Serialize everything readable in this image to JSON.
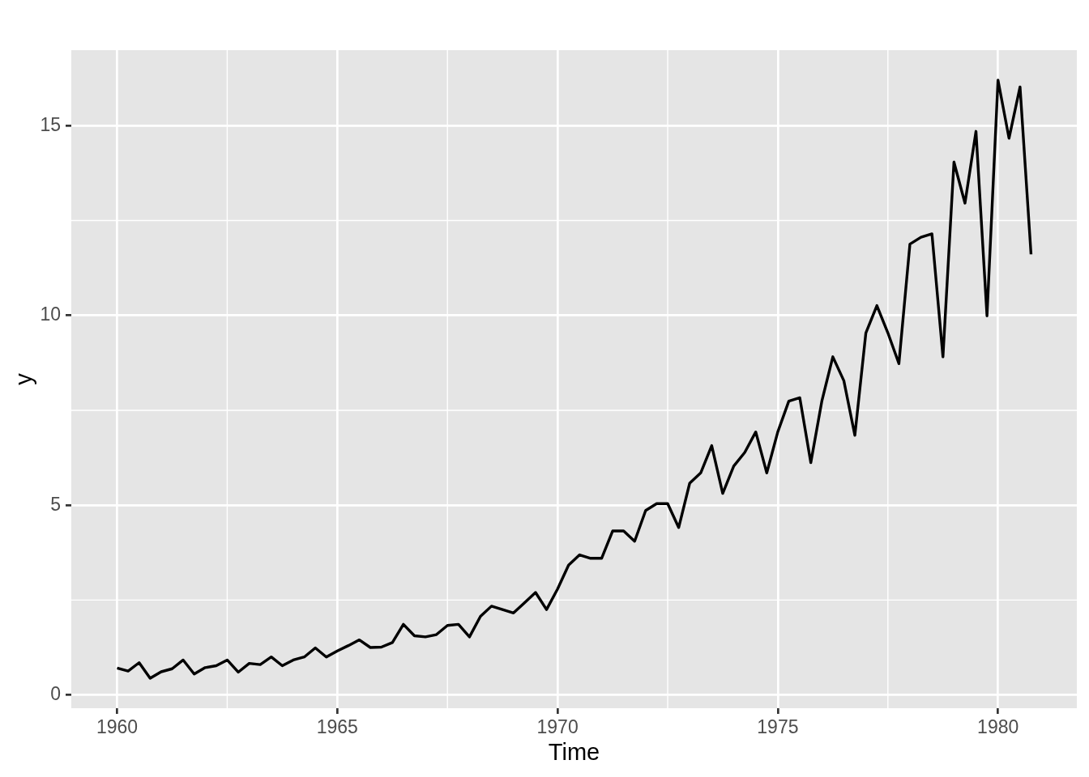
{
  "chart_data": {
    "type": "line",
    "xlabel": "Time",
    "ylabel": "y",
    "x": [
      1960,
      1960.25,
      1960.5,
      1960.75,
      1961,
      1961.25,
      1961.5,
      1961.75,
      1962,
      1962.25,
      1962.5,
      1962.75,
      1963,
      1963.25,
      1963.5,
      1963.75,
      1964,
      1964.25,
      1964.5,
      1964.75,
      1965,
      1965.25,
      1965.5,
      1965.75,
      1966,
      1966.25,
      1966.5,
      1966.75,
      1967,
      1967.25,
      1967.5,
      1967.75,
      1968,
      1968.25,
      1968.5,
      1968.75,
      1969,
      1969.25,
      1969.5,
      1969.75,
      1970,
      1970.25,
      1970.5,
      1970.75,
      1971,
      1971.25,
      1971.5,
      1971.75,
      1972,
      1972.25,
      1972.5,
      1972.75,
      1973,
      1973.25,
      1973.5,
      1973.75,
      1974,
      1974.25,
      1974.5,
      1974.75,
      1975,
      1975.25,
      1975.5,
      1975.75,
      1976,
      1976.25,
      1976.5,
      1976.75,
      1977,
      1977.25,
      1977.5,
      1977.75,
      1978,
      1978.25,
      1978.5,
      1978.75,
      1979,
      1979.25,
      1979.5,
      1979.75,
      1980,
      1980.25,
      1980.5,
      1980.75
    ],
    "series": [
      {
        "color": "#000000",
        "values": [
          0.71,
          0.63,
          0.85,
          0.44,
          0.61,
          0.69,
          0.92,
          0.55,
          0.72,
          0.77,
          0.92,
          0.6,
          0.83,
          0.8,
          1.0,
          0.77,
          0.92,
          1.0,
          1.24,
          1.0,
          1.16,
          1.3,
          1.45,
          1.25,
          1.26,
          1.38,
          1.86,
          1.56,
          1.53,
          1.59,
          1.83,
          1.86,
          1.53,
          2.07,
          2.34,
          2.25,
          2.16,
          2.43,
          2.7,
          2.25,
          2.79,
          3.42,
          3.69,
          3.6,
          3.6,
          4.32,
          4.32,
          4.05,
          4.86,
          5.04,
          5.04,
          4.41,
          5.58,
          5.85,
          6.57,
          5.31,
          6.03,
          6.39,
          6.93,
          5.85,
          6.93,
          7.74,
          7.83,
          6.12,
          7.74,
          8.91,
          8.28,
          6.84,
          9.54,
          10.26,
          9.54,
          8.73,
          11.88,
          12.06,
          12.15,
          8.91,
          14.04,
          12.96,
          14.85,
          9.99,
          16.2,
          14.67,
          16.02,
          11.61
        ]
      }
    ],
    "xlim": [
      1958.96,
      1981.79
    ],
    "ylim": [
      -0.35,
      16.99
    ],
    "xticks": [
      1960,
      1965,
      1970,
      1975,
      1980
    ],
    "yticks": [
      0,
      5,
      10,
      15
    ],
    "grid": true,
    "marker": "none",
    "line_style": "solid"
  }
}
